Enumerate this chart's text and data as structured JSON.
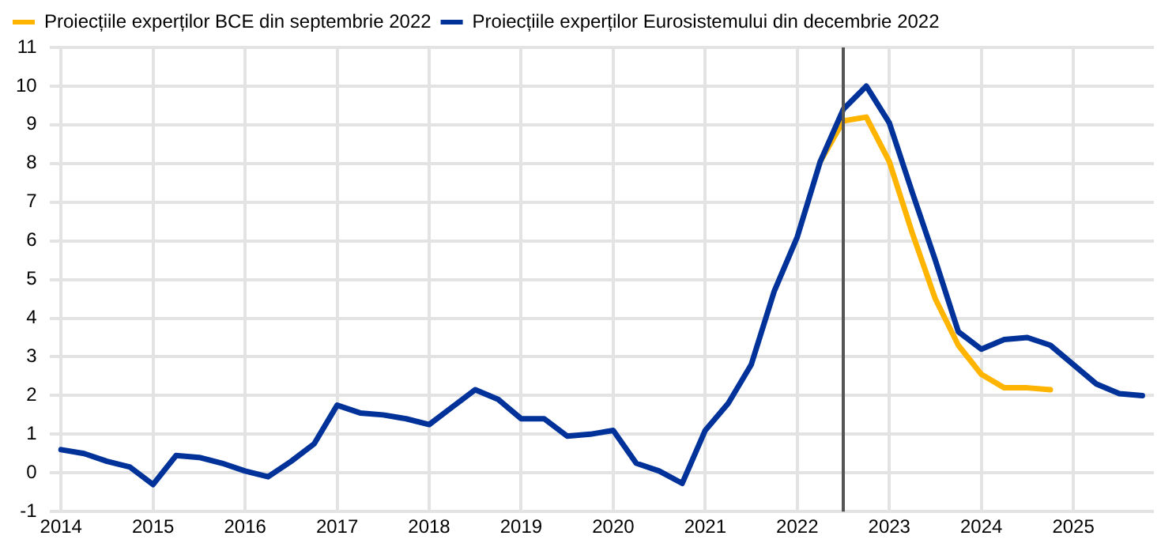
{
  "chart_data": {
    "type": "line",
    "x": [
      2014,
      2014.25,
      2014.5,
      2014.75,
      2015,
      2015.25,
      2015.5,
      2015.75,
      2016,
      2016.25,
      2016.5,
      2016.75,
      2017,
      2017.25,
      2017.5,
      2017.75,
      2018,
      2018.25,
      2018.5,
      2018.75,
      2019,
      2019.25,
      2019.5,
      2019.75,
      2020,
      2020.25,
      2020.5,
      2020.75,
      2021,
      2021.25,
      2021.5,
      2021.75,
      2022,
      2022.25,
      2022.5,
      2022.75,
      2023,
      2023.25,
      2023.5,
      2023.75,
      2024,
      2024.25,
      2024.5,
      2024.75,
      2025,
      2025.25,
      2025.5,
      2025.75
    ],
    "series": [
      {
        "name": "Proiecțiile experților BCE din septembrie 2022",
        "color": "#ffb400",
        "values": [
          null,
          null,
          null,
          null,
          null,
          null,
          null,
          null,
          null,
          null,
          null,
          null,
          null,
          null,
          null,
          null,
          null,
          null,
          null,
          null,
          null,
          null,
          null,
          null,
          null,
          null,
          null,
          null,
          null,
          null,
          null,
          null,
          null,
          8.05,
          9.1,
          9.2,
          8.05,
          6.2,
          4.5,
          3.3,
          2.55,
          2.2,
          2.2,
          2.15,
          null,
          null,
          null,
          null
        ]
      },
      {
        "name": "Proiecțiile experților Eurosistemului din decembrie 2022",
        "color": "#003299",
        "values": [
          0.6,
          0.5,
          0.3,
          0.15,
          -0.3,
          0.45,
          0.4,
          0.25,
          0.05,
          -0.1,
          0.3,
          0.75,
          1.75,
          1.55,
          1.5,
          1.4,
          1.25,
          1.7,
          2.15,
          1.9,
          1.4,
          1.4,
          0.95,
          1.0,
          1.1,
          0.25,
          0.05,
          -0.27,
          1.1,
          1.8,
          2.8,
          4.7,
          6.1,
          8.05,
          9.4,
          10.0,
          9.05,
          7.25,
          5.5,
          3.65,
          3.2,
          3.45,
          3.5,
          3.3,
          2.8,
          2.3,
          2.05,
          2.0
        ]
      }
    ],
    "xlim": [
      2013.875,
      2025.875
    ],
    "xticks": [
      2014,
      2015,
      2016,
      2017,
      2018,
      2019,
      2020,
      2021,
      2022,
      2023,
      2024,
      2025
    ],
    "ylim": [
      -1,
      11
    ],
    "yticks": [
      -1,
      0,
      1,
      2,
      3,
      4,
      5,
      6,
      7,
      8,
      9,
      10,
      11
    ],
    "ref_lines": [
      {
        "axis": "x",
        "value": 2022.5,
        "color": "#555555"
      }
    ],
    "grid": true,
    "legend": "top left",
    "marker": "none",
    "line_style": "solid"
  }
}
